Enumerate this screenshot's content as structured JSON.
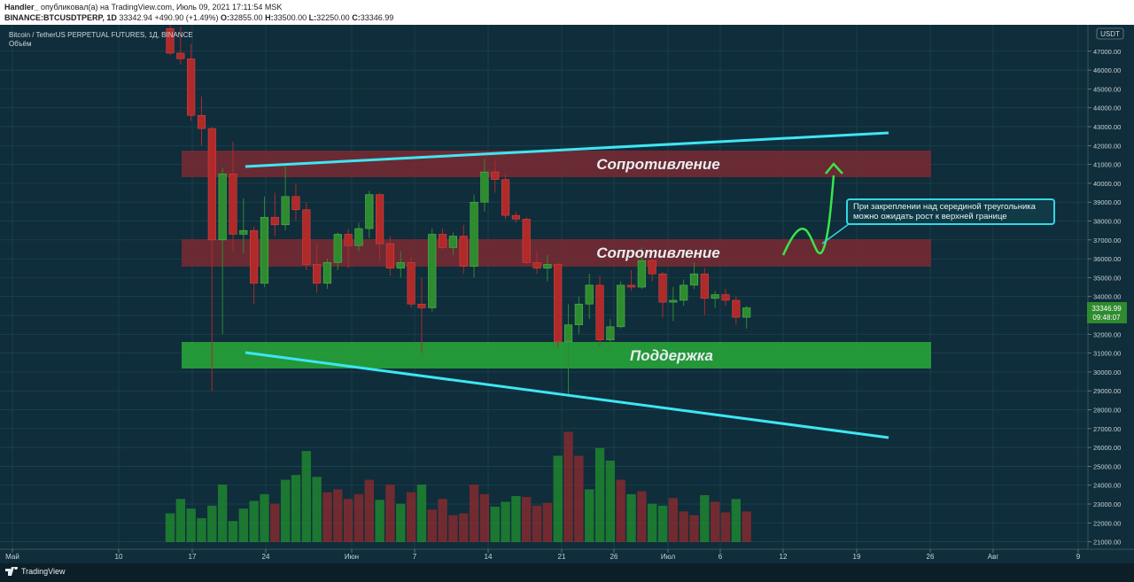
{
  "header": {
    "author": "Handler_",
    "published": "опубликовал(а) на TradingView.com, Июль 09, 2021 17:11:54 MSK",
    "symbol": "BINANCE:BTCUSDTPERP, 1D",
    "last": "33342.94",
    "change": "+490.90 (+1.49%)",
    "o_label": "O:",
    "o_value": "32855.00",
    "h_label": "H:",
    "h_value": "33500.00",
    "l_label": "L:",
    "l_value": "32250.00",
    "c_label": "C:",
    "c_value": "33346.99"
  },
  "legend": {
    "title": "Bitcoin / TetherUS PERPETUAL FUTURES, 1Д, BINANCE",
    "volume": "Объём"
  },
  "annotations": {
    "resistance_top": "Сопротивление",
    "resistance_mid": "Сопротивление",
    "support": "Поддержка",
    "note_line1": "При закреплении над серединой треугольника",
    "note_line2": "можно ожидать рост к верхней границе"
  },
  "price_badge": {
    "price": "33346.99",
    "time": "09:48:07"
  },
  "axis_unit": "USDT",
  "footer": {
    "brand": "TradingView"
  },
  "colors": {
    "background": "#0f2d3a",
    "up": "#2e8b2e",
    "down": "#b02a2a",
    "resistance_zone": "#7a2a33",
    "support_zone": "#27a33a",
    "trendline": "#3ee6f2",
    "arrow": "#39e64a"
  },
  "chart_data": {
    "type": "candlestick",
    "title": "Bitcoin / TetherUS PERPETUAL FUTURES, 1Д, BINANCE",
    "yunit": "USDT",
    "ylim": [
      20700,
      48400
    ],
    "x_ticks": [
      "Май",
      "10",
      "17",
      "24",
      "Июн",
      "7",
      "14",
      "21",
      "26",
      "Июл",
      "6",
      "12",
      "19",
      "26",
      "Авг",
      "9"
    ],
    "y_ticks": [
      21000,
      22000,
      23000,
      24000,
      25000,
      26000,
      27000,
      28000,
      29000,
      30000,
      31000,
      32000,
      33000,
      34000,
      35000,
      36000,
      37000,
      38000,
      39000,
      40000,
      41000,
      42000,
      43000,
      44000,
      45000,
      46000,
      47000
    ],
    "candles": [
      {
        "o": 48200,
        "h": 48400,
        "l": 46800,
        "c": 46900
      },
      {
        "o": 46900,
        "h": 48300,
        "l": 46300,
        "c": 46600
      },
      {
        "o": 46600,
        "h": 47400,
        "l": 43300,
        "c": 43600
      },
      {
        "o": 43600,
        "h": 44600,
        "l": 42000,
        "c": 42900
      },
      {
        "o": 42900,
        "h": 43000,
        "l": 29000,
        "c": 37000
      },
      {
        "o": 37000,
        "h": 40800,
        "l": 32000,
        "c": 40500
      },
      {
        "o": 40500,
        "h": 42200,
        "l": 36400,
        "c": 37300
      },
      {
        "o": 37300,
        "h": 39200,
        "l": 36300,
        "c": 37500
      },
      {
        "o": 37500,
        "h": 37700,
        "l": 33600,
        "c": 34700
      },
      {
        "o": 34700,
        "h": 39300,
        "l": 34500,
        "c": 38200
      },
      {
        "o": 38200,
        "h": 39500,
        "l": 37200,
        "c": 37800
      },
      {
        "o": 37800,
        "h": 40900,
        "l": 37500,
        "c": 39300
      },
      {
        "o": 39300,
        "h": 40000,
        "l": 38000,
        "c": 38600
      },
      {
        "o": 38600,
        "h": 39000,
        "l": 35400,
        "c": 35700
      },
      {
        "o": 35700,
        "h": 36800,
        "l": 34200,
        "c": 34700
      },
      {
        "o": 34700,
        "h": 36000,
        "l": 34400,
        "c": 35800
      },
      {
        "o": 35800,
        "h": 37400,
        "l": 35400,
        "c": 37300
      },
      {
        "o": 37300,
        "h": 37600,
        "l": 35500,
        "c": 36700
      },
      {
        "o": 36700,
        "h": 37900,
        "l": 36400,
        "c": 37600
      },
      {
        "o": 37600,
        "h": 39600,
        "l": 37100,
        "c": 39400
      },
      {
        "o": 39400,
        "h": 39500,
        "l": 35900,
        "c": 36800
      },
      {
        "o": 36800,
        "h": 37200,
        "l": 35100,
        "c": 35500
      },
      {
        "o": 35500,
        "h": 36400,
        "l": 35000,
        "c": 35800
      },
      {
        "o": 35800,
        "h": 36100,
        "l": 33400,
        "c": 33600
      },
      {
        "o": 33600,
        "h": 35000,
        "l": 31000,
        "c": 33400
      },
      {
        "o": 33400,
        "h": 37600,
        "l": 33200,
        "c": 37300
      },
      {
        "o": 37300,
        "h": 37600,
        "l": 36500,
        "c": 36600
      },
      {
        "o": 36600,
        "h": 37400,
        "l": 36200,
        "c": 37200
      },
      {
        "o": 37200,
        "h": 37800,
        "l": 35200,
        "c": 35600
      },
      {
        "o": 35600,
        "h": 39400,
        "l": 35000,
        "c": 39000
      },
      {
        "o": 39000,
        "h": 41300,
        "l": 38500,
        "c": 40600
      },
      {
        "o": 40600,
        "h": 41200,
        "l": 39500,
        "c": 40200
      },
      {
        "o": 40200,
        "h": 40500,
        "l": 38100,
        "c": 38300
      },
      {
        "o": 38300,
        "h": 38500,
        "l": 37900,
        "c": 38100
      },
      {
        "o": 38100,
        "h": 38200,
        "l": 35700,
        "c": 35800
      },
      {
        "o": 35800,
        "h": 36400,
        "l": 35200,
        "c": 35500
      },
      {
        "o": 35500,
        "h": 36200,
        "l": 34800,
        "c": 35700
      },
      {
        "o": 35700,
        "h": 35800,
        "l": 31300,
        "c": 31600
      },
      {
        "o": 31600,
        "h": 33600,
        "l": 28800,
        "c": 32500
      },
      {
        "o": 32500,
        "h": 34000,
        "l": 32000,
        "c": 33600
      },
      {
        "o": 33600,
        "h": 35200,
        "l": 32800,
        "c": 34600
      },
      {
        "o": 34600,
        "h": 35100,
        "l": 31400,
        "c": 31700
      },
      {
        "o": 31700,
        "h": 32800,
        "l": 31300,
        "c": 32400
      },
      {
        "o": 32400,
        "h": 34800,
        "l": 32300,
        "c": 34600
      },
      {
        "o": 34600,
        "h": 35400,
        "l": 34300,
        "c": 34500
      },
      {
        "o": 34500,
        "h": 36600,
        "l": 34400,
        "c": 35900
      },
      {
        "o": 35900,
        "h": 36000,
        "l": 34800,
        "c": 35200
      },
      {
        "o": 35200,
        "h": 35300,
        "l": 32900,
        "c": 33700
      },
      {
        "o": 33700,
        "h": 34500,
        "l": 32700,
        "c": 33800
      },
      {
        "o": 33800,
        "h": 34900,
        "l": 33500,
        "c": 34600
      },
      {
        "o": 34600,
        "h": 35800,
        "l": 34400,
        "c": 35200
      },
      {
        "o": 35200,
        "h": 35500,
        "l": 33000,
        "c": 33900
      },
      {
        "o": 33900,
        "h": 34300,
        "l": 33400,
        "c": 34100
      },
      {
        "o": 34100,
        "h": 34400,
        "l": 33500,
        "c": 33800
      },
      {
        "o": 33800,
        "h": 34000,
        "l": 32500,
        "c": 32900
      },
      {
        "o": 32900,
        "h": 33500,
        "l": 32300,
        "c": 33400
      }
    ],
    "volume_ticks": [],
    "volumes": [
      {
        "v": 3.0,
        "d": 1
      },
      {
        "v": 4.5,
        "d": 1
      },
      {
        "v": 3.5,
        "d": 1
      },
      {
        "v": 2.5,
        "d": 1
      },
      {
        "v": 3.8,
        "d": 1
      },
      {
        "v": 6.0,
        "d": 1
      },
      {
        "v": 2.2,
        "d": 1
      },
      {
        "v": 3.5,
        "d": 1
      },
      {
        "v": 4.3,
        "d": 1
      },
      {
        "v": 5.0,
        "d": 1
      },
      {
        "v": 4.0,
        "d": 0
      },
      {
        "v": 6.5,
        "d": 1
      },
      {
        "v": 7.0,
        "d": 1
      },
      {
        "v": 9.5,
        "d": 1
      },
      {
        "v": 6.8,
        "d": 1
      },
      {
        "v": 5.2,
        "d": 0
      },
      {
        "v": 5.5,
        "d": 0
      },
      {
        "v": 4.5,
        "d": 0
      },
      {
        "v": 5.0,
        "d": 0
      },
      {
        "v": 6.5,
        "d": 0
      },
      {
        "v": 4.4,
        "d": 1
      },
      {
        "v": 6.0,
        "d": 0
      },
      {
        "v": 4.0,
        "d": 1
      },
      {
        "v": 5.2,
        "d": 0
      },
      {
        "v": 6.0,
        "d": 1
      },
      {
        "v": 3.4,
        "d": 0
      },
      {
        "v": 4.5,
        "d": 0
      },
      {
        "v": 2.8,
        "d": 0
      },
      {
        "v": 3.0,
        "d": 0
      },
      {
        "v": 6.0,
        "d": 0
      },
      {
        "v": 5.0,
        "d": 0
      },
      {
        "v": 3.7,
        "d": 1
      },
      {
        "v": 4.2,
        "d": 1
      },
      {
        "v": 4.8,
        "d": 1
      },
      {
        "v": 4.7,
        "d": 0
      },
      {
        "v": 3.8,
        "d": 0
      },
      {
        "v": 4.1,
        "d": 0
      },
      {
        "v": 9.0,
        "d": 1
      },
      {
        "v": 11.5,
        "d": 0
      },
      {
        "v": 9.0,
        "d": 0
      },
      {
        "v": 5.5,
        "d": 1
      },
      {
        "v": 9.8,
        "d": 1
      },
      {
        "v": 8.5,
        "d": 1
      },
      {
        "v": 6.5,
        "d": 0
      },
      {
        "v": 5.0,
        "d": 1
      },
      {
        "v": 5.3,
        "d": 0
      },
      {
        "v": 4.0,
        "d": 1
      },
      {
        "v": 3.8,
        "d": 1
      },
      {
        "v": 4.6,
        "d": 0
      },
      {
        "v": 3.2,
        "d": 0
      },
      {
        "v": 2.8,
        "d": 0
      },
      {
        "v": 4.9,
        "d": 1
      },
      {
        "v": 4.2,
        "d": 0
      },
      {
        "v": 3.1,
        "d": 0
      },
      {
        "v": 4.5,
        "d": 1
      },
      {
        "v": 3.2,
        "d": 0
      }
    ]
  }
}
